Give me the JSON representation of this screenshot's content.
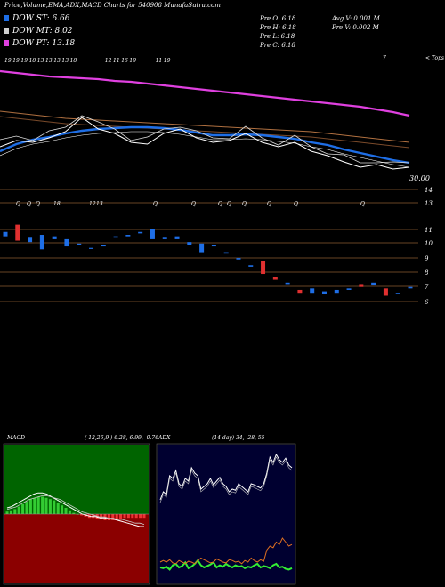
{
  "header": {
    "title": "Price,Volume,EMA,ADX,MACD Charts for 540908 MunafaSutra.com",
    "legend": [
      {
        "label": "DOW ST: 6.66",
        "color": "#1e6ee6"
      },
      {
        "label": "DOW MT: 8.02",
        "color": "#cfcfcf"
      },
      {
        "label": "DOW PT: 13.18",
        "color": "#e040e0"
      }
    ],
    "stats": {
      "open": "Pre  O: 6.18",
      "high": "Pre  H: 6.18",
      "low": "Pre  L: 6.18",
      "close": "Pre  C: 6.18",
      "avg_vol": "Avg V: 0.001 M",
      "pre_vol": "Pre  V: 0.002  M"
    }
  },
  "chart_data": [
    {
      "type": "line",
      "name": "price-ema-panel",
      "top_right_label": "< Tops",
      "level_label": "30.00",
      "top_dates": [
        "19",
        "19",
        "19",
        "18",
        "13",
        "13",
        "13",
        "13",
        "18",
        "12",
        "11",
        "16",
        "19",
        "11",
        "19",
        "",
        "7"
      ],
      "series": [
        {
          "name": "dow-pt",
          "color": "#e040e0",
          "values": [
            80,
            82,
            84,
            86,
            87,
            88,
            89,
            91,
            92,
            94,
            96,
            98,
            100,
            102,
            104,
            106,
            108,
            110,
            112,
            114,
            116,
            118,
            120,
            123,
            126,
            130
          ]
        },
        {
          "name": "dow-mt",
          "color": "#b07040",
          "values": [
            125,
            127,
            129,
            131,
            133,
            134,
            135,
            136,
            137,
            138,
            139,
            140,
            141,
            142,
            143,
            144,
            145,
            146,
            147,
            148,
            150,
            152,
            154,
            156,
            158,
            160
          ]
        },
        {
          "name": "dow-st",
          "color": "#1e6ee6",
          "values": [
            170,
            162,
            157,
            154,
            150,
            147,
            145,
            144,
            143,
            143,
            144,
            146,
            149,
            152,
            152,
            151,
            152,
            154,
            156,
            160,
            163,
            168,
            172,
            176,
            180,
            183
          ]
        },
        {
          "name": "price",
          "color": "#ffffff",
          "values": [
            165,
            158,
            160,
            155,
            148,
            132,
            145,
            150,
            160,
            162,
            150,
            145,
            155,
            160,
            158,
            150,
            160,
            165,
            160,
            170,
            175,
            182,
            188,
            185,
            190,
            188
          ]
        }
      ]
    },
    {
      "type": "bar",
      "name": "volume-candles-panel",
      "level_labels": [
        "14",
        "13",
        "11",
        "10",
        "9",
        "8",
        "7",
        "6"
      ],
      "annotations": [
        "Q",
        "Q",
        "Q",
        "18",
        "12",
        "13",
        "Q",
        "Q",
        "Q",
        "Q",
        "Q",
        "Q",
        "Q",
        "Q"
      ],
      "candles": [
        {
          "o": 10.8,
          "c": 10.5,
          "color": "#1e6ee6"
        },
        {
          "o": 11.3,
          "c": 10.2,
          "color": "#e03030"
        },
        {
          "o": 10.4,
          "c": 10.1,
          "color": "#1e6ee6"
        },
        {
          "o": 10.6,
          "c": 9.6,
          "color": "#1e6ee6"
        },
        {
          "o": 10.5,
          "c": 10.3,
          "color": "#1e6ee6"
        },
        {
          "o": 10.3,
          "c": 9.8,
          "color": "#1e6ee6"
        },
        {
          "o": 10.0,
          "c": 9.9,
          "color": "#1e6ee6"
        },
        {
          "o": 9.7,
          "c": 9.65,
          "color": "#1e6ee6"
        },
        {
          "o": 9.9,
          "c": 9.8,
          "color": "#1e6ee6"
        },
        {
          "o": 10.5,
          "c": 10.4,
          "color": "#1e6ee6"
        },
        {
          "o": 10.6,
          "c": 10.5,
          "color": "#1e6ee6"
        },
        {
          "o": 10.8,
          "c": 10.7,
          "color": "#1e6ee6"
        },
        {
          "o": 11.0,
          "c": 10.3,
          "color": "#1e6ee6"
        },
        {
          "o": 10.4,
          "c": 10.3,
          "color": "#1e6ee6"
        },
        {
          "o": 10.5,
          "c": 10.3,
          "color": "#1e6ee6"
        },
        {
          "o": 10.1,
          "c": 9.9,
          "color": "#1e6ee6"
        },
        {
          "o": 10.0,
          "c": 9.4,
          "color": "#1e6ee6"
        },
        {
          "o": 9.9,
          "c": 9.8,
          "color": "#1e6ee6"
        },
        {
          "o": 9.4,
          "c": 9.3,
          "color": "#1e6ee6"
        },
        {
          "o": 9.0,
          "c": 8.9,
          "color": "#1e6ee6"
        },
        {
          "o": 8.5,
          "c": 8.4,
          "color": "#1e6ee6"
        },
        {
          "o": 8.8,
          "c": 7.9,
          "color": "#e03030"
        },
        {
          "o": 7.7,
          "c": 7.5,
          "color": "#e03030"
        },
        {
          "o": 7.3,
          "c": 7.2,
          "color": "#1e6ee6"
        },
        {
          "o": 6.8,
          "c": 6.6,
          "color": "#e03030"
        },
        {
          "o": 6.9,
          "c": 6.6,
          "color": "#1e6ee6"
        },
        {
          "o": 6.7,
          "c": 6.5,
          "color": "#1e6ee6"
        },
        {
          "o": 6.8,
          "c": 6.6,
          "color": "#1e6ee6"
        },
        {
          "o": 6.9,
          "c": 6.8,
          "color": "#1e6ee6"
        },
        {
          "o": 7.2,
          "c": 7.0,
          "color": "#e03030"
        },
        {
          "o": 7.3,
          "c": 7.1,
          "color": "#1e6ee6"
        },
        {
          "o": 6.9,
          "c": 6.4,
          "color": "#e03030"
        },
        {
          "o": 6.6,
          "c": 6.5,
          "color": "#1e6ee6"
        },
        {
          "o": 7.0,
          "c": 6.9,
          "color": "#1e6ee6"
        }
      ]
    },
    {
      "type": "line",
      "name": "macd-panel",
      "title": "MACD",
      "params": "( 12,26,9 ) 6.28, 6.99, -0.76",
      "histogram": [
        2,
        3,
        4,
        6,
        8,
        10,
        12,
        13,
        14,
        14,
        13,
        12,
        11,
        9,
        7,
        5,
        3,
        1,
        0,
        -1,
        -2,
        -3,
        -3,
        -4,
        -4,
        -5,
        -5,
        -5,
        -4,
        -4,
        -3,
        -3,
        -3,
        -3,
        -3,
        -3
      ],
      "macd_line": [
        5,
        6,
        8,
        10,
        12,
        14,
        16,
        17,
        17,
        16,
        14,
        12,
        10,
        8,
        6,
        4,
        2,
        0,
        -1,
        -2,
        -2,
        -3,
        -3,
        -4,
        -4,
        -5,
        -6,
        -7,
        -8,
        -9,
        -10,
        -10
      ],
      "signal_line": [
        3,
        4,
        5,
        7,
        9,
        11,
        12,
        13,
        14,
        14,
        13,
        12,
        11,
        9,
        7,
        5,
        3,
        1,
        0,
        -1,
        -2,
        -3,
        -3,
        -4,
        -4,
        -5,
        -5,
        -6,
        -7,
        -8,
        -8,
        -9
      ]
    },
    {
      "type": "line",
      "name": "adx-panel",
      "title": "ADX",
      "params": "(14 day) 34, -28, 55",
      "adx": [
        30,
        45,
        40,
        75,
        70,
        85,
        60,
        55,
        70,
        65,
        90,
        80,
        75,
        50,
        55,
        60,
        70,
        58,
        65,
        72,
        60,
        55,
        45,
        50,
        48,
        60,
        55,
        50,
        45,
        60,
        58,
        55,
        52,
        60,
        80,
        110,
        100,
        115,
        105,
        100,
        108,
        95,
        90
      ],
      "plus_di": [
        15,
        14,
        16,
        12,
        18,
        20,
        15,
        17,
        22,
        14,
        16,
        20,
        25,
        18,
        15,
        17,
        19,
        22,
        15,
        18,
        16,
        20,
        17,
        15,
        18,
        16,
        17,
        14,
        16,
        15,
        18,
        20,
        15,
        17,
        16,
        14,
        18,
        20,
        15,
        16,
        13,
        12,
        14
      ],
      "minus_di": [
        20,
        22,
        20,
        23,
        19,
        18,
        22,
        20,
        18,
        21,
        20,
        18,
        22,
        25,
        23,
        21,
        19,
        20,
        24,
        22,
        20,
        19,
        23,
        22,
        20,
        21,
        18,
        22,
        20,
        25,
        22,
        20,
        23,
        21,
        35,
        40,
        38,
        45,
        42,
        50,
        45,
        40,
        42
      ]
    }
  ]
}
